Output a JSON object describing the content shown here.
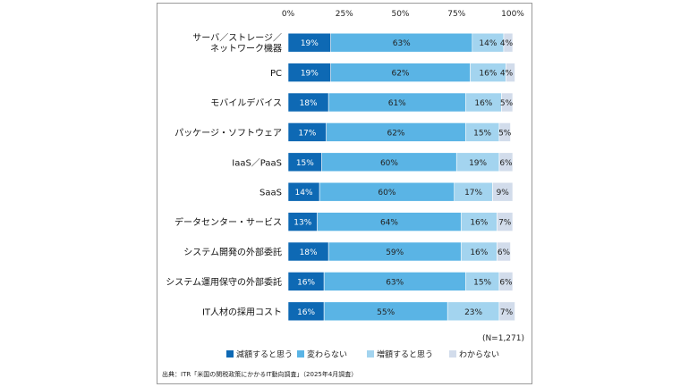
{
  "chart_data": {
    "type": "bar",
    "orientation": "horizontal",
    "stacked": true,
    "percent_stacked": true,
    "categories": [
      "サーバ／ストレージ／ネットワーク機器",
      "PC",
      "モバイルデバイス",
      "パッケージ・ソフトウェア",
      "IaaS／PaaS",
      "SaaS",
      "データセンター・サービス",
      "システム開発の外部委託",
      "システム運用保守の外部委託",
      "IT人材の採用コスト"
    ],
    "category_lines": [
      [
        "サーバ／ストレージ／",
        "ネットワーク機器"
      ],
      [
        "PC"
      ],
      [
        "モバイルデバイス"
      ],
      [
        "パッケージ・ソフトウェア"
      ],
      [
        "IaaS／PaaS"
      ],
      [
        "SaaS"
      ],
      [
        "データセンター・サービス"
      ],
      [
        "システム開発の外部委託"
      ],
      [
        "システム運用保守の外部委託"
      ],
      [
        "IT人材の採用コスト"
      ]
    ],
    "series": [
      {
        "name": "減額すると思う",
        "color": "#0e69b4",
        "label_color": "#ffffff",
        "values": [
          19,
          19,
          18,
          17,
          15,
          14,
          13,
          18,
          16,
          16
        ]
      },
      {
        "name": "変わらない",
        "color": "#5ab4e5",
        "label_color": "#222222",
        "values": [
          63,
          62,
          61,
          62,
          60,
          60,
          64,
          59,
          63,
          55
        ]
      },
      {
        "name": "増額すると思う",
        "color": "#a3d4ef",
        "label_color": "#222222",
        "values": [
          14,
          16,
          16,
          15,
          19,
          17,
          16,
          16,
          15,
          23
        ]
      },
      {
        "name": "わからない",
        "color": "#d2dceb",
        "label_color": "#222222",
        "values": [
          4,
          4,
          5,
          5,
          6,
          9,
          7,
          6,
          6,
          7
        ]
      }
    ],
    "xlim": [
      0,
      100
    ],
    "x_ticks": [
      0,
      25,
      50,
      75,
      100
    ],
    "x_tick_labels": [
      "0%",
      "25%",
      "50%",
      "75%",
      "100%"
    ],
    "value_suffix": "%",
    "grid": false,
    "legend_position": "bottom",
    "sample_note": "(N=1,271)",
    "source": "出典：ITR「米国の関税政策にかかるIT動向調査」（2025年4月調査）"
  }
}
